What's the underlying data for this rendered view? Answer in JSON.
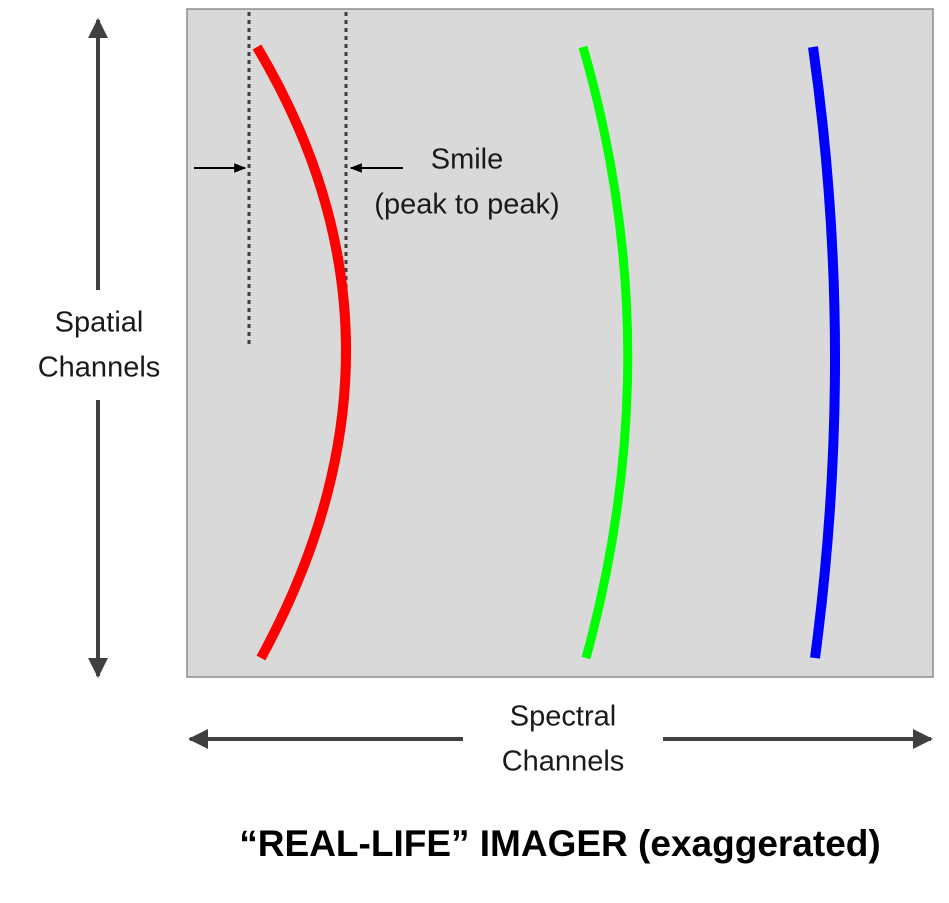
{
  "title": "“REAL-LIFE” IMAGER (exaggerated)",
  "vertical_axis": {
    "label": [
      "Spatial",
      "Channels"
    ]
  },
  "horizontal_axis": {
    "label": [
      "Spectral",
      "Channels"
    ]
  },
  "annotation": {
    "label": [
      "Smile",
      "(peak to peak)"
    ]
  }
}
